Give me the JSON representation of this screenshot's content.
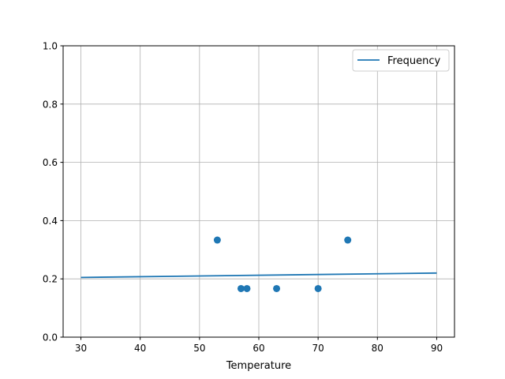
{
  "chart_data": {
    "type": "scatter",
    "title": "",
    "xlabel": "Temperature",
    "ylabel": "",
    "xlim": [
      27,
      93
    ],
    "ylim": [
      0,
      1.0
    ],
    "xticks": [
      30,
      40,
      50,
      60,
      70,
      80,
      90
    ],
    "xtick_labels": [
      "30",
      "40",
      "50",
      "60",
      "70",
      "80",
      "90"
    ],
    "yticks": [
      0,
      0.2,
      0.4,
      0.6,
      0.8,
      1.0
    ],
    "ytick_labels": [
      "0.0",
      "0.2",
      "0.4",
      "0.6",
      "0.8",
      "1.0"
    ],
    "grid": true,
    "legend_position": "top-right",
    "color": "#1f77b4",
    "scatter": {
      "x": [
        53,
        57,
        58,
        63,
        70,
        75
      ],
      "y": [
        0.3333,
        0.1667,
        0.1667,
        0.1667,
        0.1667,
        0.3333
      ]
    },
    "line": {
      "name": "Frequency",
      "x": [
        30,
        90
      ],
      "y": [
        0.205,
        0.22
      ]
    }
  }
}
